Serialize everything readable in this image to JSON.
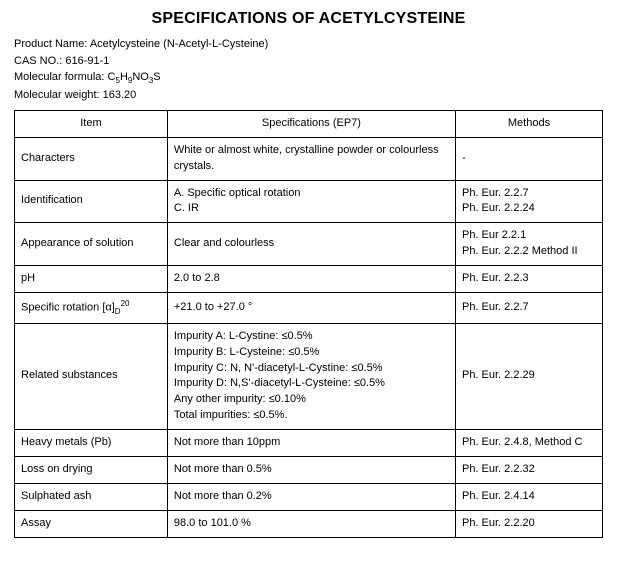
{
  "title": "SPECIFICATIONS OF ACETYLCYSTEINE",
  "meta": {
    "product_name": "Product Name: Acetylcysteine (N-Acetyl-L-Cysteine)",
    "cas_no": "CAS NO.: 616-91-1",
    "formula_prefix": "Molecular formula: C",
    "mw": "Molecular weight: 163.20"
  },
  "headers": {
    "item": "Item",
    "spec": "Specifications (EP7)",
    "method": "Methods"
  },
  "rows": {
    "characters": {
      "item": "Characters",
      "spec": "White or almost white, crystalline powder or colourless crystals.",
      "method": "-"
    },
    "identification": {
      "item": "Identification",
      "spec1": "A. Specific optical rotation",
      "spec2": "C. IR",
      "method1": "Ph. Eur. 2.2.7",
      "method2": "Ph. Eur. 2.2.24"
    },
    "appearance": {
      "item": "Appearance of solution",
      "spec": "Clear and colourless",
      "method1": "Ph. Eur 2.2.1",
      "method2": "Ph. Eur. 2.2.2 Method II"
    },
    "ph": {
      "item": "pH",
      "spec": "2.0 to 2.8",
      "method": "Ph. Eur. 2.2.3"
    },
    "rotation": {
      "item_prefix": "Specific rotation [α]",
      "item_sub": "D",
      "item_sup": "20",
      "spec": "+21.0 to +27.0 °",
      "method": "Ph. Eur. 2.2.7"
    },
    "related": {
      "item": "Related substances",
      "l1": "Impurity A: L-Cystine: ≤0.5%",
      "l2": "Impurity B: L-Cysteine: ≤0.5%",
      "l3": "Impurity C: N, N'-diacetyl-L-Cystine: ≤0.5%",
      "l4": "Impurity D: N,S'-diacetyl-L-Cysteine: ≤0.5%",
      "l5": "Any other impurity: ≤0.10%",
      "l6": "Total impurities: ≤0.5%.",
      "method": "Ph. Eur. 2.2.29"
    },
    "heavy": {
      "item": "Heavy metals (Pb)",
      "spec": "Not more than 10ppm",
      "method": "Ph. Eur. 2.4.8, Method C"
    },
    "loss": {
      "item": "Loss on drying",
      "spec": "Not more than 0.5%",
      "method": "Ph. Eur. 2.2.32"
    },
    "ash": {
      "item": "Sulphated ash",
      "spec": "Not more than 0.2%",
      "method": "Ph. Eur. 2.4.14"
    },
    "assay": {
      "item": "Assay",
      "spec": "98.0 to 101.0 %",
      "method": "Ph. Eur. 2.2.20"
    }
  }
}
